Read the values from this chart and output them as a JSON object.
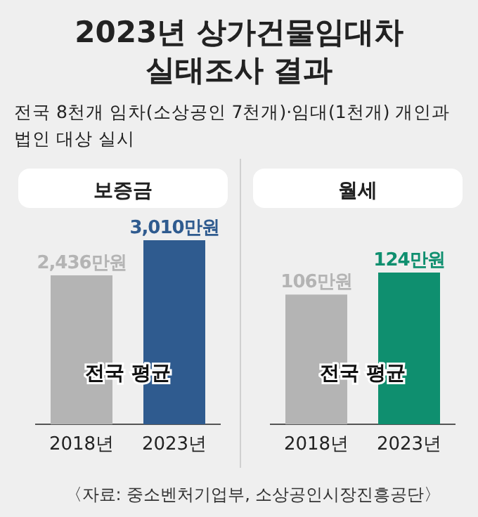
{
  "chart_data": [
    {
      "type": "other",
      "title": "2023년 상가건물임대차\n실태조사 결과",
      "subtitle": "전국 8천개 임차(소상공인 7천개)·임대(1천개) 개인과\n법인 대상 실시",
      "annotations": [
        "〈자료: 중소벤처기업부, 소상공인시장진흥공단〉"
      ]
    },
    {
      "type": "bar",
      "title": "보증금",
      "categories": [
        "2018년",
        "2023년"
      ],
      "values": [
        2436,
        3010
      ],
      "colors": [
        "#b4b4b4",
        "#2f5b8f"
      ],
      "value_labels": [
        "2,436만원",
        "3,010만원"
      ],
      "annotations": [
        "전국 평균"
      ]
    },
    {
      "type": "bar",
      "title": "월세",
      "categories": [
        "2018년",
        "2023년"
      ],
      "values": [
        106,
        124
      ],
      "colors": [
        "#b4b4b4",
        "#0f8f6f"
      ],
      "value_labels": [
        "106만원",
        "124만원"
      ],
      "annotations": [
        "전국 평균"
      ]
    }
  ]
}
